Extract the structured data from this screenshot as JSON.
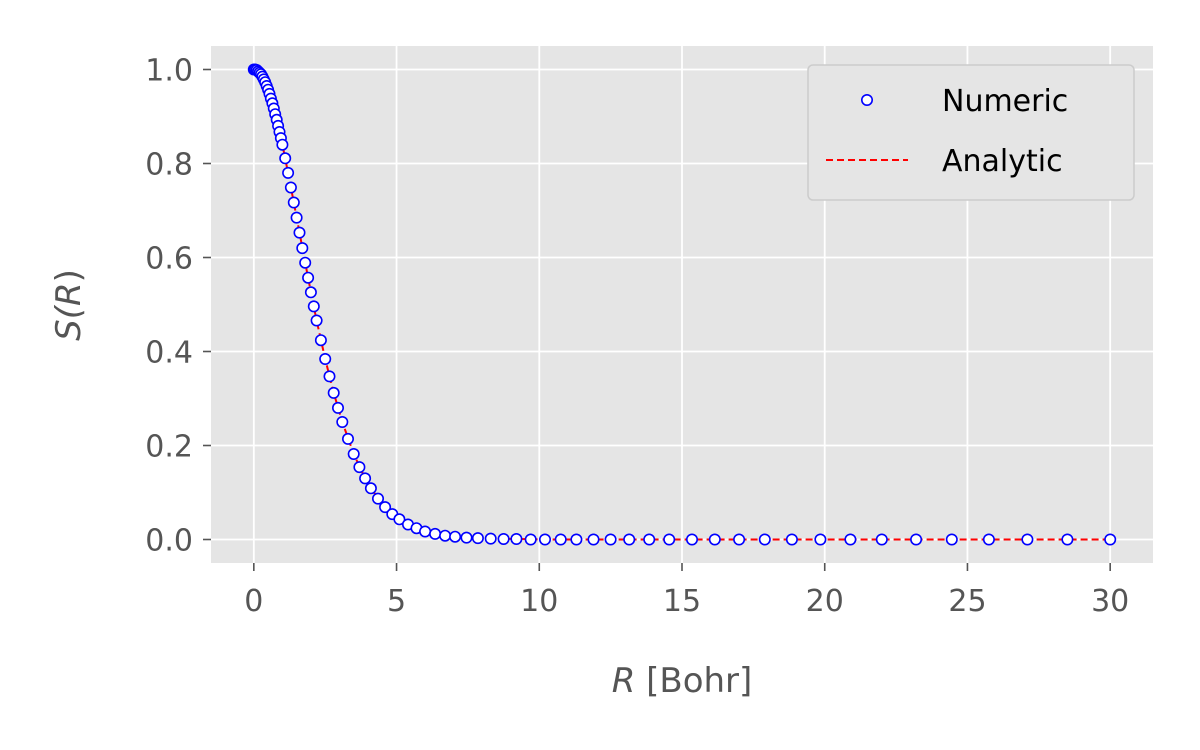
{
  "chart_data": {
    "type": "line",
    "title": "",
    "xlabel_var": "R",
    "xlabel_unit": " [Bohr]",
    "ylabel_fn": "S(",
    "ylabel_var": "R",
    "ylabel_close": ")",
    "xlim": [
      -1.5,
      31.5
    ],
    "ylim": [
      -0.05,
      1.05
    ],
    "xticks": [
      0,
      5,
      10,
      15,
      20,
      25,
      30
    ],
    "xtick_labels": [
      "0",
      "5",
      "10",
      "15",
      "20",
      "25",
      "30"
    ],
    "yticks": [
      0.0,
      0.2,
      0.4,
      0.6,
      0.8,
      1.0
    ],
    "ytick_labels": [
      "0.0",
      "0.2",
      "0.4",
      "0.6",
      "0.8",
      "1.0"
    ],
    "grid": true,
    "style": "ggplot",
    "legend_position": "top-right",
    "series": [
      {
        "name": "Numeric",
        "style": "markers",
        "marker": "hollow-circle",
        "color": "#0000ff",
        "x": [
          0.0,
          0.05,
          0.1,
          0.15,
          0.2,
          0.25,
          0.3,
          0.35,
          0.4,
          0.45,
          0.5,
          0.55,
          0.6,
          0.65,
          0.7,
          0.75,
          0.8,
          0.85,
          0.9,
          0.95,
          1.0,
          1.1,
          1.2,
          1.3,
          1.4,
          1.5,
          1.6,
          1.7,
          1.8,
          1.9,
          2.0,
          2.1,
          2.2,
          2.35,
          2.5,
          2.65,
          2.8,
          2.95,
          3.1,
          3.3,
          3.5,
          3.7,
          3.9,
          4.1,
          4.35,
          4.6,
          4.85,
          5.1,
          5.4,
          5.7,
          6.0,
          6.35,
          6.7,
          7.05,
          7.45,
          7.85,
          8.3,
          8.75,
          9.2,
          9.7,
          10.2,
          10.75,
          11.3,
          11.9,
          12.5,
          13.15,
          13.85,
          14.55,
          15.35,
          16.15,
          17.0,
          17.9,
          18.85,
          19.85,
          20.9,
          22.0,
          23.2,
          24.45,
          25.75,
          27.1,
          28.5,
          30.0
        ],
        "y": [
          1.0,
          1.0,
          0.999,
          0.996,
          0.993,
          0.99,
          0.985,
          0.979,
          0.973,
          0.965,
          0.957,
          0.948,
          0.938,
          0.928,
          0.917,
          0.905,
          0.893,
          0.88,
          0.867,
          0.854,
          0.84,
          0.811,
          0.78,
          0.749,
          0.717,
          0.685,
          0.653,
          0.62,
          0.589,
          0.557,
          0.526,
          0.496,
          0.466,
          0.424,
          0.384,
          0.347,
          0.312,
          0.28,
          0.25,
          0.214,
          0.182,
          0.154,
          0.13,
          0.109,
          0.087,
          0.069,
          0.054,
          0.043,
          0.032,
          0.024,
          0.017,
          0.012,
          0.008,
          0.006,
          0.004,
          0.003,
          0.002,
          0.001,
          0.001,
          0.0,
          0.0,
          0.0,
          0.0,
          0.0,
          0.0,
          0.0,
          0.0,
          0.0,
          0.0,
          0.0,
          0.0,
          0.0,
          0.0,
          0.0,
          0.0,
          0.0,
          0.0,
          0.0,
          0.0,
          0.0,
          0.0,
          0.0
        ]
      },
      {
        "name": "Analytic",
        "style": "dashed-line",
        "color": "#ff0000",
        "x": [
          0.0,
          0.1,
          0.2,
          0.3,
          0.4,
          0.5,
          0.6,
          0.7,
          0.8,
          0.9,
          1.0,
          1.2,
          1.4,
          1.6,
          1.8,
          2.0,
          2.2,
          2.5,
          2.8,
          3.1,
          3.5,
          3.9,
          4.35,
          4.85,
          5.4,
          6.0,
          6.7,
          7.45,
          8.3,
          9.2,
          10.2,
          11.3,
          12.5,
          15.0,
          20.0,
          25.0,
          30.0
        ],
        "y": [
          1.0,
          0.999,
          0.993,
          0.985,
          0.973,
          0.957,
          0.938,
          0.917,
          0.893,
          0.867,
          0.84,
          0.78,
          0.717,
          0.653,
          0.589,
          0.526,
          0.466,
          0.384,
          0.312,
          0.25,
          0.182,
          0.13,
          0.087,
          0.054,
          0.032,
          0.017,
          0.008,
          0.004,
          0.002,
          0.001,
          0.0,
          0.0,
          0.0,
          0.0,
          0.0,
          0.0,
          0.0
        ]
      }
    ]
  }
}
